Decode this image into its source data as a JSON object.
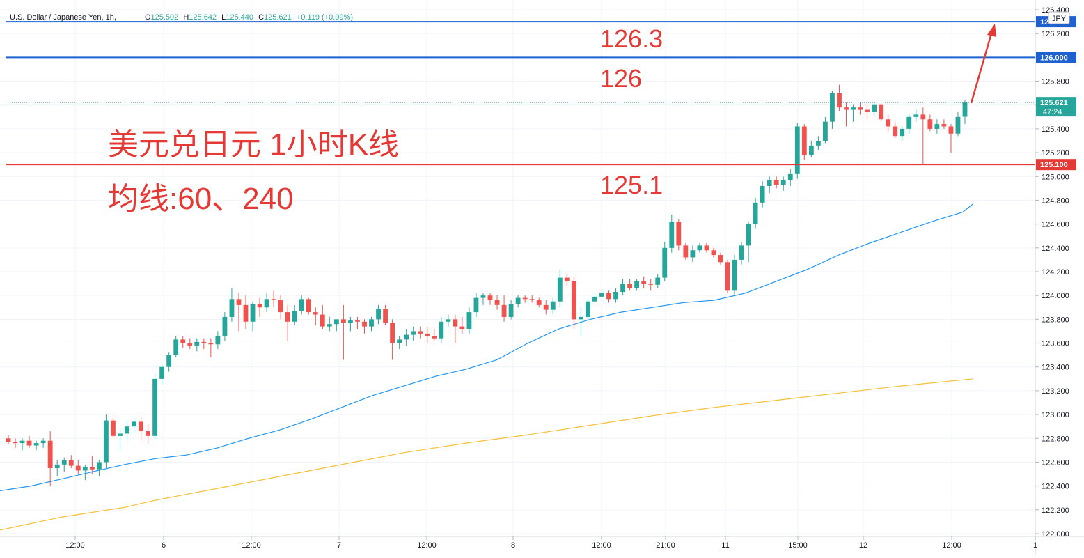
{
  "header": {
    "symbol": "U.S. Dollar / Japanese Yen, 1h,",
    "o_label": "O",
    "o_value": "125.502",
    "h_label": "H",
    "h_value": "125.642",
    "l_label": "L",
    "l_value": "125.440",
    "c_label": "C",
    "c_value": "125.621",
    "change": "+0.119 (+0.09%)"
  },
  "currency_badge": "JPY",
  "annotations": {
    "title_line1": "美元兑日元 1小时K线",
    "title_line2": "均线:60、240",
    "level_126_3": "126.3",
    "level_126": "126",
    "level_125_1": "125.1"
  },
  "price_labels": {
    "line_126_3": "126.300",
    "line_126": "126.000",
    "current": "125.621",
    "countdown": "47:24",
    "line_125_1": "125.100"
  },
  "colors": {
    "up": "#26a69a",
    "down": "#ef5350",
    "ma60": "#2196f3",
    "ma240": "#f5c036",
    "hline_blue": "#1e62d0",
    "hline_red": "#e53935",
    "annotation_red": "#e53935",
    "grid": "#f0f3fa"
  },
  "chart_data": {
    "type": "candlestick",
    "y_ticks": [
      "126.400",
      "126.200",
      "126.000",
      "125.800",
      "125.600",
      "125.400",
      "125.200",
      "125.000",
      "124.800",
      "124.600",
      "124.400",
      "124.200",
      "124.000",
      "123.800",
      "123.600",
      "123.400",
      "123.200",
      "123.000",
      "122.800",
      "122.600",
      "122.400",
      "122.200",
      "122.000"
    ],
    "x_ticks": [
      "12:00",
      "6",
      "12:00",
      "7",
      "12:00",
      "8",
      "12:00",
      "21:00",
      "11",
      "15:00",
      "12",
      "12:00",
      "1"
    ],
    "ylim": [
      122.0,
      126.4
    ],
    "horizontal_lines": [
      126.3,
      126.0,
      125.1
    ],
    "current_price": 125.621,
    "candles": [
      [
        122.8,
        122.83,
        122.75,
        122.77
      ],
      [
        122.77,
        122.8,
        122.72,
        122.76
      ],
      [
        122.76,
        122.8,
        122.7,
        122.78
      ],
      [
        122.78,
        122.82,
        122.72,
        122.74
      ],
      [
        122.74,
        122.78,
        122.7,
        122.76
      ],
      [
        122.76,
        122.8,
        122.72,
        122.78
      ],
      [
        122.78,
        122.86,
        122.4,
        122.55
      ],
      [
        122.55,
        122.62,
        122.48,
        122.58
      ],
      [
        122.58,
        122.64,
        122.52,
        122.62
      ],
      [
        122.62,
        122.66,
        122.55,
        122.57
      ],
      [
        122.57,
        122.62,
        122.5,
        122.53
      ],
      [
        122.53,
        122.58,
        122.45,
        122.56
      ],
      [
        122.56,
        122.65,
        122.5,
        122.54
      ],
      [
        122.54,
        122.62,
        122.48,
        122.6
      ],
      [
        122.6,
        123.0,
        122.55,
        122.95
      ],
      [
        122.95,
        122.98,
        122.8,
        122.82
      ],
      [
        122.82,
        122.88,
        122.7,
        122.84
      ],
      [
        122.84,
        122.95,
        122.78,
        122.9
      ],
      [
        122.9,
        122.98,
        122.84,
        122.94
      ],
      [
        122.94,
        122.98,
        122.78,
        122.86
      ],
      [
        122.86,
        122.92,
        122.75,
        122.82
      ],
      [
        122.82,
        123.35,
        122.8,
        123.3
      ],
      [
        123.3,
        123.42,
        123.25,
        123.4
      ],
      [
        123.4,
        123.52,
        123.36,
        123.5
      ],
      [
        123.5,
        123.66,
        123.48,
        123.63
      ],
      [
        123.63,
        123.66,
        123.56,
        123.6
      ],
      [
        123.6,
        123.64,
        123.55,
        123.58
      ],
      [
        123.58,
        123.64,
        123.53,
        123.61
      ],
      [
        123.61,
        123.64,
        123.55,
        123.6
      ],
      [
        123.6,
        123.64,
        123.48,
        123.59
      ],
      [
        123.59,
        123.7,
        123.55,
        123.66
      ],
      [
        123.66,
        123.86,
        123.62,
        123.82
      ],
      [
        123.82,
        124.06,
        123.78,
        123.97
      ],
      [
        123.97,
        124.02,
        123.7,
        123.92
      ],
      [
        123.92,
        124.0,
        123.72,
        123.78
      ],
      [
        123.78,
        123.95,
        123.7,
        123.93
      ],
      [
        123.93,
        123.98,
        123.82,
        123.9
      ],
      [
        123.9,
        124.02,
        123.86,
        123.97
      ],
      [
        123.97,
        124.04,
        123.9,
        123.96
      ],
      [
        123.96,
        124.0,
        123.8,
        123.86
      ],
      [
        123.86,
        123.92,
        123.62,
        123.78
      ],
      [
        123.78,
        123.92,
        123.75,
        123.87
      ],
      [
        123.87,
        124.0,
        123.84,
        123.97
      ],
      [
        123.97,
        123.98,
        123.84,
        123.86
      ],
      [
        123.86,
        123.9,
        123.75,
        123.84
      ],
      [
        123.84,
        123.92,
        123.72,
        123.74
      ],
      [
        123.74,
        123.82,
        123.7,
        123.76
      ],
      [
        123.76,
        123.8,
        123.7,
        123.8
      ],
      [
        123.8,
        123.92,
        123.46,
        123.77
      ],
      [
        123.77,
        123.82,
        123.7,
        123.79
      ],
      [
        123.79,
        123.82,
        123.72,
        123.78
      ],
      [
        123.78,
        123.8,
        123.68,
        123.74
      ],
      [
        123.74,
        123.82,
        123.7,
        123.8
      ],
      [
        123.8,
        123.92,
        123.76,
        123.89
      ],
      [
        123.89,
        123.92,
        123.75,
        123.77
      ],
      [
        123.77,
        123.8,
        123.46,
        123.6
      ],
      [
        123.6,
        123.66,
        123.55,
        123.63
      ],
      [
        123.63,
        123.72,
        123.58,
        123.67
      ],
      [
        123.67,
        123.74,
        123.62,
        123.7
      ],
      [
        123.7,
        123.74,
        123.64,
        123.68
      ],
      [
        123.68,
        123.74,
        123.6,
        123.66
      ],
      [
        123.66,
        123.72,
        123.62,
        123.64
      ],
      [
        123.64,
        123.82,
        123.6,
        123.78
      ],
      [
        123.78,
        123.84,
        123.74,
        123.8
      ],
      [
        123.8,
        123.84,
        123.6,
        123.74
      ],
      [
        123.74,
        123.82,
        123.68,
        123.72
      ],
      [
        123.72,
        123.9,
        123.68,
        123.86
      ],
      [
        123.86,
        124.02,
        123.82,
        123.98
      ],
      [
        123.98,
        124.02,
        123.92,
        124.0
      ],
      [
        124.0,
        124.02,
        123.92,
        123.96
      ],
      [
        123.96,
        124.0,
        123.88,
        123.92
      ],
      [
        123.92,
        124.0,
        123.78,
        123.82
      ],
      [
        123.82,
        123.96,
        123.8,
        123.93
      ],
      [
        123.93,
        124.0,
        123.9,
        123.98
      ],
      [
        123.98,
        124.0,
        123.94,
        123.97
      ],
      [
        123.97,
        124.0,
        123.94,
        123.96
      ],
      [
        123.96,
        123.98,
        123.9,
        123.92
      ],
      [
        123.92,
        123.96,
        123.84,
        123.88
      ],
      [
        123.88,
        123.98,
        123.84,
        123.95
      ],
      [
        123.95,
        124.22,
        123.9,
        124.15
      ],
      [
        124.15,
        124.18,
        124.08,
        124.12
      ],
      [
        124.12,
        124.16,
        123.72,
        123.8
      ],
      [
        123.8,
        123.9,
        123.66,
        123.82
      ],
      [
        123.82,
        123.98,
        123.8,
        123.95
      ],
      [
        123.95,
        124.02,
        123.92,
        123.99
      ],
      [
        123.99,
        124.05,
        123.95,
        124.02
      ],
      [
        124.02,
        124.04,
        123.94,
        123.97
      ],
      [
        123.97,
        124.06,
        123.94,
        124.03
      ],
      [
        124.03,
        124.14,
        124.0,
        124.1
      ],
      [
        124.1,
        124.14,
        124.04,
        124.06
      ],
      [
        124.06,
        124.14,
        124.04,
        124.12
      ],
      [
        124.12,
        124.16,
        124.06,
        124.1
      ],
      [
        124.1,
        124.14,
        124.04,
        124.09
      ],
      [
        124.09,
        124.18,
        124.06,
        124.15
      ],
      [
        124.15,
        124.45,
        124.12,
        124.4
      ],
      [
        124.4,
        124.68,
        124.36,
        124.62
      ],
      [
        124.62,
        124.64,
        124.38,
        124.42
      ],
      [
        124.42,
        124.44,
        124.3,
        124.32
      ],
      [
        124.32,
        124.42,
        124.28,
        124.38
      ],
      [
        124.38,
        124.44,
        124.36,
        124.42
      ],
      [
        124.42,
        124.44,
        124.36,
        124.38
      ],
      [
        124.38,
        124.4,
        124.32,
        124.34
      ],
      [
        124.34,
        124.36,
        124.26,
        124.28
      ],
      [
        124.28,
        124.3,
        124.02,
        124.04
      ],
      [
        124.04,
        124.34,
        124.0,
        124.3
      ],
      [
        124.3,
        124.45,
        124.26,
        124.42
      ],
      [
        124.42,
        124.62,
        124.28,
        124.6
      ],
      [
        124.6,
        124.82,
        124.56,
        124.78
      ],
      [
        124.78,
        124.96,
        124.74,
        124.92
      ],
      [
        124.92,
        125.0,
        124.86,
        124.97
      ],
      [
        124.97,
        125.0,
        124.9,
        124.93
      ],
      [
        124.93,
        125.0,
        124.88,
        124.97
      ],
      [
        124.97,
        125.06,
        124.92,
        125.02
      ],
      [
        125.02,
        125.45,
        124.98,
        125.42
      ],
      [
        125.42,
        125.44,
        125.14,
        125.18
      ],
      [
        125.18,
        125.3,
        125.16,
        125.26
      ],
      [
        125.26,
        125.34,
        125.22,
        125.3
      ],
      [
        125.3,
        125.5,
        125.28,
        125.46
      ],
      [
        125.46,
        125.72,
        125.4,
        125.7
      ],
      [
        125.7,
        125.77,
        125.55,
        125.58
      ],
      [
        125.58,
        125.62,
        125.42,
        125.56
      ],
      [
        125.56,
        125.6,
        125.46,
        125.58
      ],
      [
        125.58,
        125.62,
        125.52,
        125.56
      ],
      [
        125.56,
        125.6,
        125.48,
        125.54
      ],
      [
        125.54,
        125.62,
        125.5,
        125.6
      ],
      [
        125.6,
        125.62,
        125.46,
        125.48
      ],
      [
        125.48,
        125.52,
        125.38,
        125.42
      ],
      [
        125.42,
        125.46,
        125.32,
        125.34
      ],
      [
        125.34,
        125.42,
        125.3,
        125.4
      ],
      [
        125.4,
        125.52,
        125.36,
        125.5
      ],
      [
        125.5,
        125.56,
        125.46,
        125.52
      ],
      [
        125.52,
        125.58,
        125.1,
        125.48
      ],
      [
        125.48,
        125.52,
        125.38,
        125.4
      ],
      [
        125.4,
        125.48,
        125.36,
        125.44
      ],
      [
        125.44,
        125.48,
        125.4,
        125.42
      ],
      [
        125.42,
        125.44,
        125.2,
        125.36
      ],
      [
        125.36,
        125.54,
        125.34,
        125.5
      ],
      [
        125.502,
        125.642,
        125.44,
        125.621
      ]
    ],
    "ma60": [
      [
        0,
        122.36
      ],
      [
        0.03,
        122.4
      ],
      [
        0.06,
        122.46
      ],
      [
        0.09,
        122.52
      ],
      [
        0.12,
        122.58
      ],
      [
        0.15,
        122.63
      ],
      [
        0.18,
        122.66
      ],
      [
        0.21,
        122.72
      ],
      [
        0.24,
        122.8
      ],
      [
        0.27,
        122.87
      ],
      [
        0.3,
        122.96
      ],
      [
        0.33,
        123.06
      ],
      [
        0.36,
        123.16
      ],
      [
        0.39,
        123.24
      ],
      [
        0.42,
        123.32
      ],
      [
        0.45,
        123.38
      ],
      [
        0.48,
        123.46
      ],
      [
        0.51,
        123.6
      ],
      [
        0.54,
        123.72
      ],
      [
        0.57,
        123.8
      ],
      [
        0.6,
        123.86
      ],
      [
        0.63,
        123.9
      ],
      [
        0.66,
        123.94
      ],
      [
        0.69,
        123.96
      ],
      [
        0.72,
        124.02
      ],
      [
        0.75,
        124.12
      ],
      [
        0.78,
        124.22
      ],
      [
        0.81,
        124.34
      ],
      [
        0.84,
        124.44
      ],
      [
        0.87,
        124.53
      ],
      [
        0.9,
        124.62
      ],
      [
        0.93,
        124.7
      ],
      [
        0.94,
        124.77
      ]
    ],
    "ma240": [
      [
        0,
        122.03
      ],
      [
        0.06,
        122.14
      ],
      [
        0.12,
        122.22
      ],
      [
        0.15,
        122.28
      ],
      [
        0.21,
        122.38
      ],
      [
        0.27,
        122.48
      ],
      [
        0.33,
        122.58
      ],
      [
        0.39,
        122.68
      ],
      [
        0.45,
        122.76
      ],
      [
        0.51,
        122.83
      ],
      [
        0.57,
        122.91
      ],
      [
        0.63,
        122.99
      ],
      [
        0.69,
        123.06
      ],
      [
        0.75,
        123.12
      ],
      [
        0.81,
        123.18
      ],
      [
        0.87,
        123.24
      ],
      [
        0.94,
        123.3
      ]
    ]
  }
}
